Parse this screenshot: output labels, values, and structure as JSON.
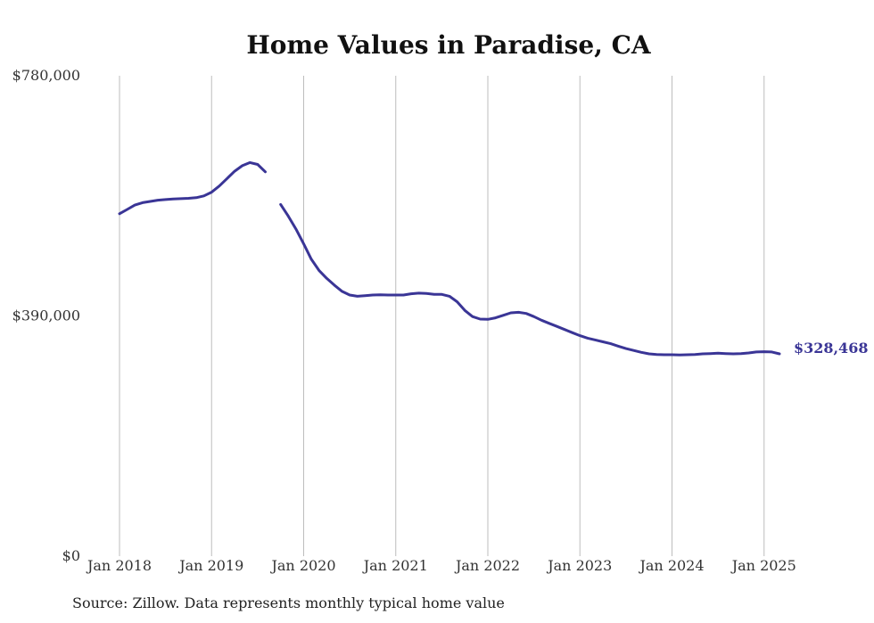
{
  "chart_data": {
    "type": "line",
    "title": "Home Values in Paradise, CA",
    "xlabel": "",
    "ylabel": "",
    "ylim": [
      0,
      780000
    ],
    "y_ticks": [
      {
        "value": 0,
        "label": "$0"
      },
      {
        "value": 390000,
        "label": "$390,000"
      },
      {
        "value": 780000,
        "label": "$780,000"
      }
    ],
    "x_ticks": [
      {
        "value": "2018-01",
        "label": "Jan 2018"
      },
      {
        "value": "2019-01",
        "label": "Jan 2019"
      },
      {
        "value": "2020-01",
        "label": "Jan 2020"
      },
      {
        "value": "2021-01",
        "label": "Jan 2021"
      },
      {
        "value": "2022-01",
        "label": "Jan 2022"
      },
      {
        "value": "2023-01",
        "label": "Jan 2023"
      },
      {
        "value": "2024-01",
        "label": "Jan 2024"
      },
      {
        "value": "2025-01",
        "label": "Jan 2025"
      }
    ],
    "grid": "vertical",
    "series": [
      {
        "color": "#3a3596",
        "values": [
          {
            "x": "2018-01",
            "y": 556000
          },
          {
            "x": "2018-02",
            "y": 563000
          },
          {
            "x": "2018-03",
            "y": 570000
          },
          {
            "x": "2018-04",
            "y": 574000
          },
          {
            "x": "2018-05",
            "y": 576000
          },
          {
            "x": "2018-06",
            "y": 578000
          },
          {
            "x": "2018-07",
            "y": 579000
          },
          {
            "x": "2018-08",
            "y": 580000
          },
          {
            "x": "2018-09",
            "y": 580500
          },
          {
            "x": "2018-10",
            "y": 581000
          },
          {
            "x": "2018-11",
            "y": 582000
          },
          {
            "x": "2018-12",
            "y": 585000
          },
          {
            "x": "2019-01",
            "y": 591000
          },
          {
            "x": "2019-02",
            "y": 601000
          },
          {
            "x": "2019-03",
            "y": 613000
          },
          {
            "x": "2019-04",
            "y": 625000
          },
          {
            "x": "2019-05",
            "y": 634000
          },
          {
            "x": "2019-06",
            "y": 639000
          },
          {
            "x": "2019-07",
            "y": 636000
          },
          {
            "x": "2019-08",
            "y": 624000
          },
          {
            "x": "2019-09",
            "y": null
          },
          {
            "x": "2019-10",
            "y": 571000
          },
          {
            "x": "2019-11",
            "y": 552000
          },
          {
            "x": "2019-12",
            "y": 531000
          },
          {
            "x": "2020-01",
            "y": 507000
          },
          {
            "x": "2020-02",
            "y": 482000
          },
          {
            "x": "2020-03",
            "y": 464000
          },
          {
            "x": "2020-04",
            "y": 451000
          },
          {
            "x": "2020-05",
            "y": 440000
          },
          {
            "x": "2020-06",
            "y": 430000
          },
          {
            "x": "2020-07",
            "y": 424000
          },
          {
            "x": "2020-08",
            "y": 422000
          },
          {
            "x": "2020-09",
            "y": 423000
          },
          {
            "x": "2020-10",
            "y": 424000
          },
          {
            "x": "2020-11",
            "y": 424500
          },
          {
            "x": "2020-12",
            "y": 424000
          },
          {
            "x": "2021-01",
            "y": 424000
          },
          {
            "x": "2021-02",
            "y": 424000
          },
          {
            "x": "2021-03",
            "y": 426000
          },
          {
            "x": "2021-04",
            "y": 427000
          },
          {
            "x": "2021-05",
            "y": 426500
          },
          {
            "x": "2021-06",
            "y": 425000
          },
          {
            "x": "2021-07",
            "y": 425000
          },
          {
            "x": "2021-08",
            "y": 422000
          },
          {
            "x": "2021-09",
            "y": 413000
          },
          {
            "x": "2021-10",
            "y": 399000
          },
          {
            "x": "2021-11",
            "y": 389000
          },
          {
            "x": "2021-12",
            "y": 385000
          },
          {
            "x": "2022-01",
            "y": 384500
          },
          {
            "x": "2022-02",
            "y": 387000
          },
          {
            "x": "2022-03",
            "y": 391000
          },
          {
            "x": "2022-04",
            "y": 395000
          },
          {
            "x": "2022-05",
            "y": 396000
          },
          {
            "x": "2022-06",
            "y": 394000
          },
          {
            "x": "2022-07",
            "y": 389000
          },
          {
            "x": "2022-08",
            "y": 383000
          },
          {
            "x": "2022-09",
            "y": 378000
          },
          {
            "x": "2022-10",
            "y": 373000
          },
          {
            "x": "2022-11",
            "y": 368000
          },
          {
            "x": "2022-12",
            "y": 363000
          },
          {
            "x": "2023-01",
            "y": 358000
          },
          {
            "x": "2023-02",
            "y": 354000
          },
          {
            "x": "2023-03",
            "y": 351000
          },
          {
            "x": "2023-04",
            "y": 348000
          },
          {
            "x": "2023-05",
            "y": 345000
          },
          {
            "x": "2023-06",
            "y": 341000
          },
          {
            "x": "2023-07",
            "y": 337000
          },
          {
            "x": "2023-08",
            "y": 334000
          },
          {
            "x": "2023-09",
            "y": 331000
          },
          {
            "x": "2023-10",
            "y": 328500
          },
          {
            "x": "2023-11",
            "y": 327500
          },
          {
            "x": "2023-12",
            "y": 327000
          },
          {
            "x": "2024-01",
            "y": 327000
          },
          {
            "x": "2024-02",
            "y": 326800
          },
          {
            "x": "2024-03",
            "y": 327000
          },
          {
            "x": "2024-04",
            "y": 327500
          },
          {
            "x": "2024-05",
            "y": 328500
          },
          {
            "x": "2024-06",
            "y": 329000
          },
          {
            "x": "2024-07",
            "y": 329500
          },
          {
            "x": "2024-08",
            "y": 329000
          },
          {
            "x": "2024-09",
            "y": 328500
          },
          {
            "x": "2024-10",
            "y": 329000
          },
          {
            "x": "2024-11",
            "y": 330000
          },
          {
            "x": "2024-12",
            "y": 331500
          },
          {
            "x": "2025-01",
            "y": 332000
          },
          {
            "x": "2025-02",
            "y": 331500
          },
          {
            "x": "2025-03",
            "y": 328468
          }
        ]
      }
    ],
    "end_label": "$328,468"
  },
  "source_note": "Source: Zillow. Data represents monthly typical home value"
}
